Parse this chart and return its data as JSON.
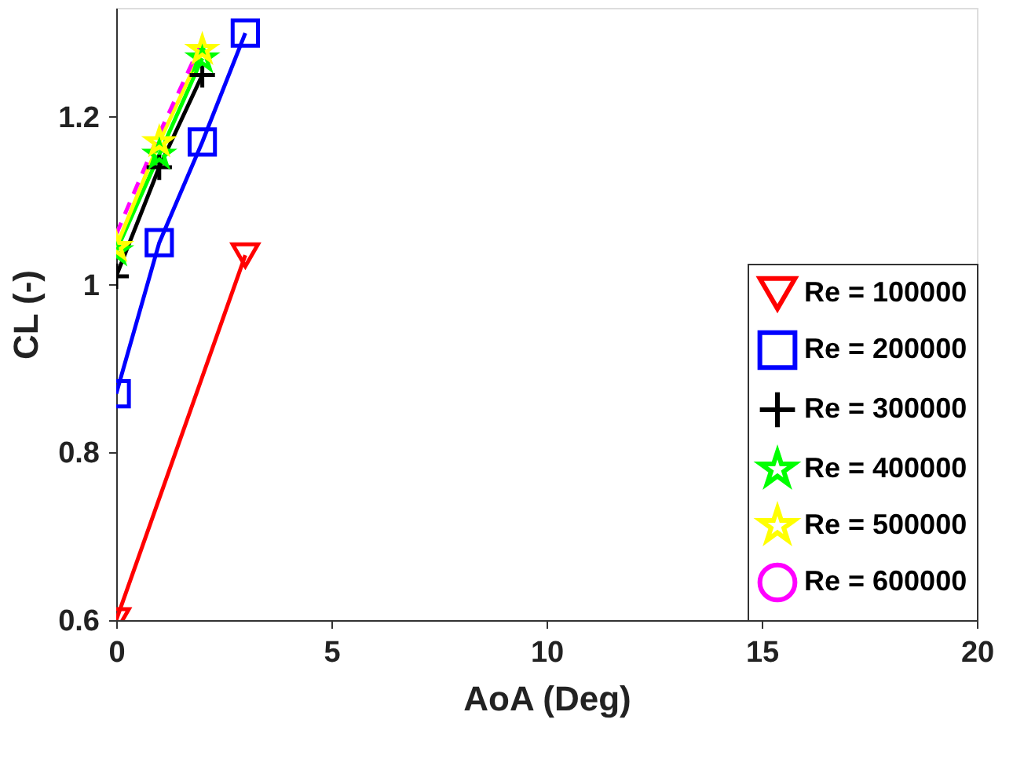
{
  "chart_data": {
    "type": "line",
    "xlabel": "AoA (Deg)",
    "ylabel": "CL (-)",
    "xlim": [
      0,
      20
    ],
    "xticks": [
      0,
      5,
      10,
      15,
      20
    ],
    "ylim": [
      0.6,
      1.33
    ],
    "yticks": [
      0.6,
      0.8,
      1,
      1.2
    ],
    "grid": false,
    "legend": "bottom right",
    "series": [
      {
        "name": "Re = 100000",
        "color": "#ff0000",
        "marker": "triangle",
        "line_style": "solid",
        "x": [
          0,
          3
        ],
        "values": [
          0.6,
          1.035
        ]
      },
      {
        "name": "Re = 200000",
        "color": "#0000ff",
        "marker": "square",
        "line_style": "solid",
        "x": [
          0,
          1,
          2,
          3
        ],
        "values": [
          0.87,
          1.05,
          1.17,
          1.3
        ]
      },
      {
        "name": "Re = 300000",
        "color": "#000000",
        "marker": "cross",
        "line_style": "solid",
        "x": [
          0,
          1,
          2
        ],
        "values": [
          1.01,
          1.14,
          1.25
        ]
      },
      {
        "name": "Re = 400000",
        "color": "#00ff00",
        "marker": "star",
        "line_style": "solid",
        "x": [
          0,
          1,
          2
        ],
        "values": [
          1.04,
          1.155,
          1.27
        ]
      },
      {
        "name": "Re = 500000",
        "color": "#ffff00",
        "marker": "star",
        "line_style": "solid",
        "x": [
          0,
          1,
          2
        ],
        "values": [
          1.045,
          1.17,
          1.28
        ]
      },
      {
        "name": "Re = 600000",
        "color": "#ff00ff",
        "marker": "none",
        "line_style": "dashed",
        "x": [
          0,
          1,
          2
        ],
        "values": [
          1.06,
          1.18,
          1.29
        ]
      }
    ]
  }
}
